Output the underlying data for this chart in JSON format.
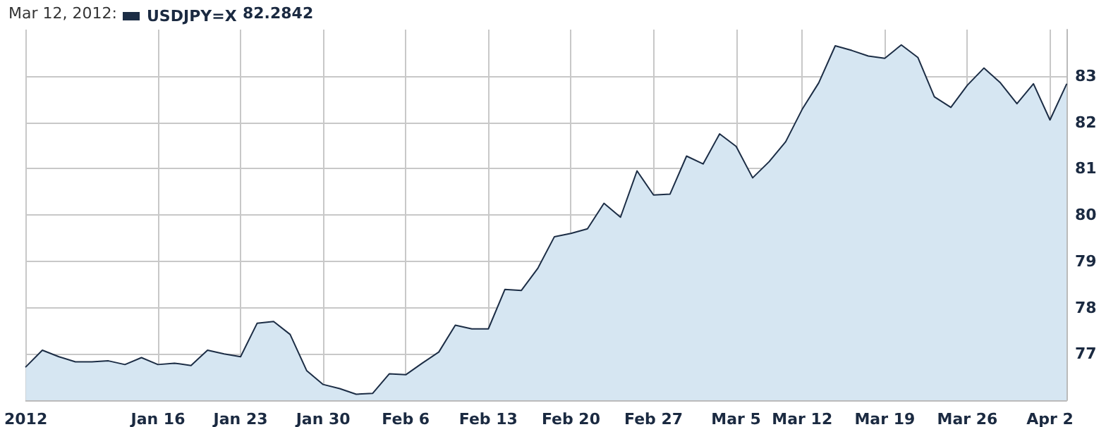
{
  "chart_data": {
    "type": "area",
    "categories": [
      "2012",
      null,
      null,
      null,
      null,
      null,
      null,
      null,
      "Jan 16",
      null,
      null,
      null,
      null,
      "Jan 23",
      null,
      null,
      null,
      null,
      "Jan 30",
      null,
      null,
      null,
      null,
      "Feb 6",
      null,
      null,
      null,
      null,
      "Feb 13",
      null,
      null,
      null,
      null,
      "Feb 20",
      null,
      null,
      null,
      null,
      "Feb 27",
      null,
      null,
      null,
      null,
      "Mar 5",
      null,
      null,
      null,
      "Mar 12",
      null,
      null,
      null,
      null,
      "Mar 19",
      null,
      null,
      null,
      null,
      "Mar 26",
      null,
      null,
      null,
      null,
      "Apr 2",
      null
    ],
    "series": [
      {
        "name": "USDJPY=X",
        "color": "#1c2d45",
        "values": [
          76.72,
          77.08,
          76.94,
          76.83,
          76.83,
          76.85,
          76.77,
          76.92,
          76.77,
          76.8,
          76.75,
          77.08,
          77.0,
          76.94,
          77.66,
          77.7,
          77.42,
          76.64,
          76.34,
          76.25,
          76.13,
          76.15,
          76.57,
          76.55,
          76.8,
          77.04,
          77.62,
          77.54,
          77.54,
          78.39,
          78.37,
          78.85,
          79.53,
          79.6,
          79.7,
          80.25,
          79.95,
          80.95,
          80.43,
          80.45,
          81.27,
          81.1,
          81.75,
          81.48,
          80.8,
          81.15,
          81.58,
          82.28,
          82.85,
          83.65,
          83.55,
          83.43,
          83.38,
          83.67,
          83.4,
          82.55,
          82.32,
          82.8,
          83.17,
          82.85,
          82.4,
          82.83,
          82.05,
          82.82
        ]
      }
    ],
    "ylim": [
      76,
      84
    ],
    "yticks": [
      77,
      78,
      79,
      80,
      81,
      82,
      83
    ],
    "grid": true,
    "legend": "top left",
    "marker": "none",
    "annotations": [
      "Mar 12, 2012:",
      "82.2842"
    ]
  }
}
